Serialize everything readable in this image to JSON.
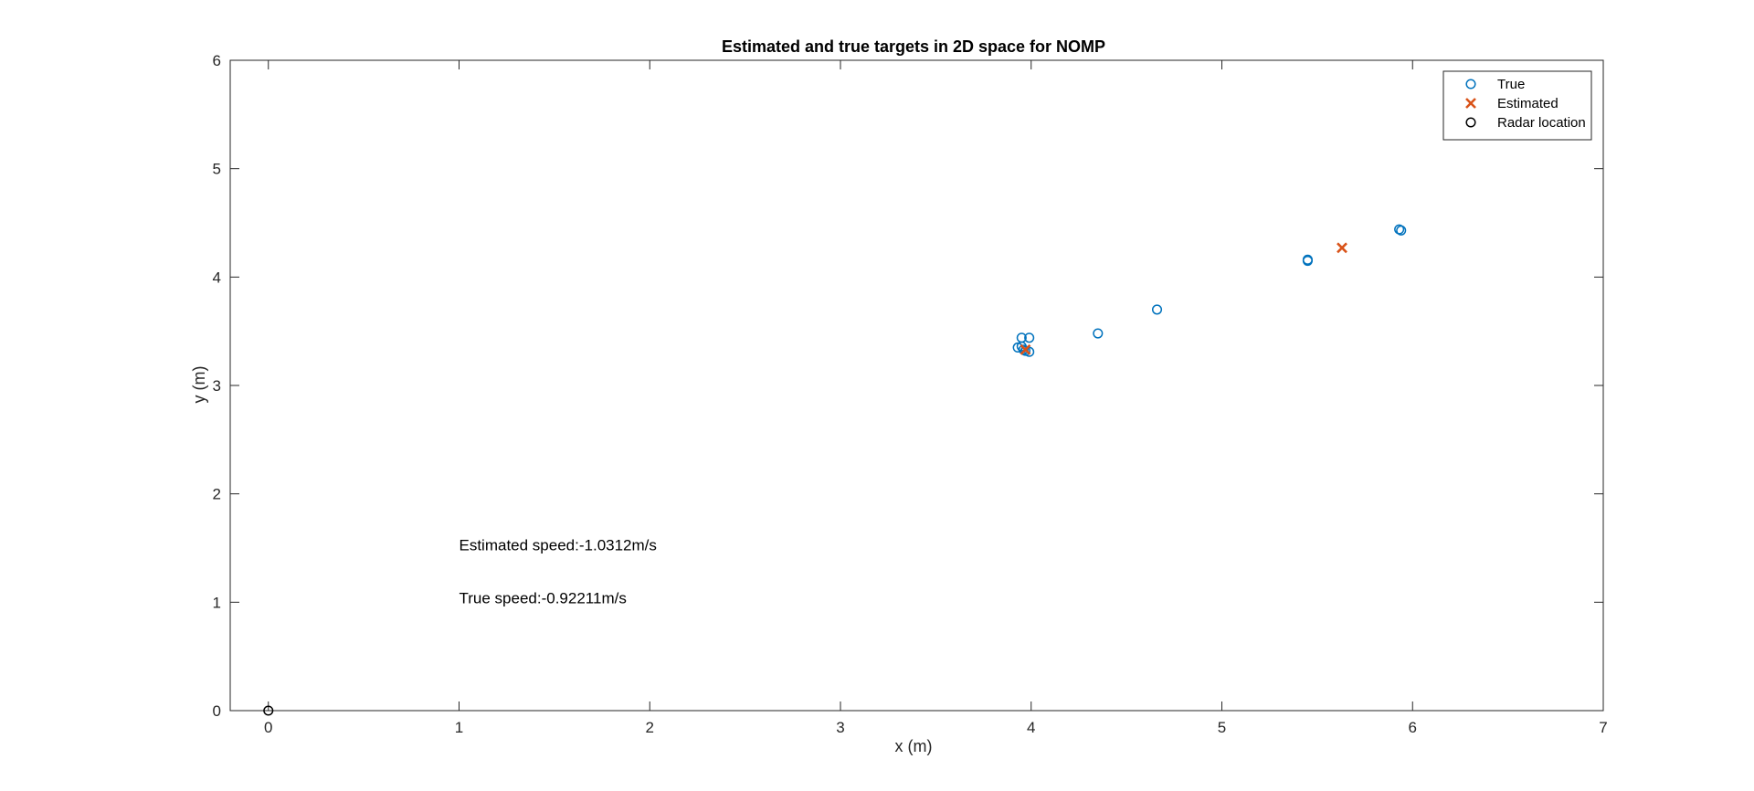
{
  "chart_data": {
    "type": "scatter",
    "title": "Estimated and true targets in 2D space for NOMP",
    "xlabel": "x (m)",
    "ylabel": "y (m)",
    "xlim": [
      -0.2,
      7
    ],
    "ylim": [
      0,
      6
    ],
    "xticks": [
      0,
      1,
      2,
      3,
      4,
      5,
      6,
      7
    ],
    "yticks": [
      0,
      1,
      2,
      3,
      4,
      5,
      6
    ],
    "grid": false,
    "legend_position": "top-right",
    "series": [
      {
        "name": "True",
        "marker": "circle",
        "color": "#0072BD",
        "points": [
          {
            "x": 3.95,
            "y": 3.44
          },
          {
            "x": 3.99,
            "y": 3.44
          },
          {
            "x": 3.93,
            "y": 3.35
          },
          {
            "x": 3.95,
            "y": 3.36
          },
          {
            "x": 3.96,
            "y": 3.33
          },
          {
            "x": 3.97,
            "y": 3.32
          },
          {
            "x": 3.99,
            "y": 3.31
          },
          {
            "x": 4.35,
            "y": 3.48
          },
          {
            "x": 4.66,
            "y": 3.7
          },
          {
            "x": 5.45,
            "y": 4.15
          },
          {
            "x": 5.45,
            "y": 4.16
          },
          {
            "x": 5.93,
            "y": 4.44
          },
          {
            "x": 5.94,
            "y": 4.43
          }
        ]
      },
      {
        "name": "Estimated",
        "marker": "x",
        "color": "#D95319",
        "points": [
          {
            "x": 3.97,
            "y": 3.33
          },
          {
            "x": 5.63,
            "y": 4.27
          }
        ]
      },
      {
        "name": "Radar location",
        "marker": "circle",
        "color": "#000000",
        "points": [
          {
            "x": 0,
            "y": 0
          }
        ]
      }
    ],
    "annotations": [
      {
        "text": "Estimated speed:-1.0312m/s",
        "x": 1.0,
        "y": 1.48
      },
      {
        "text": "True speed:-0.92211m/s",
        "x": 1.0,
        "y": 0.99
      }
    ]
  }
}
